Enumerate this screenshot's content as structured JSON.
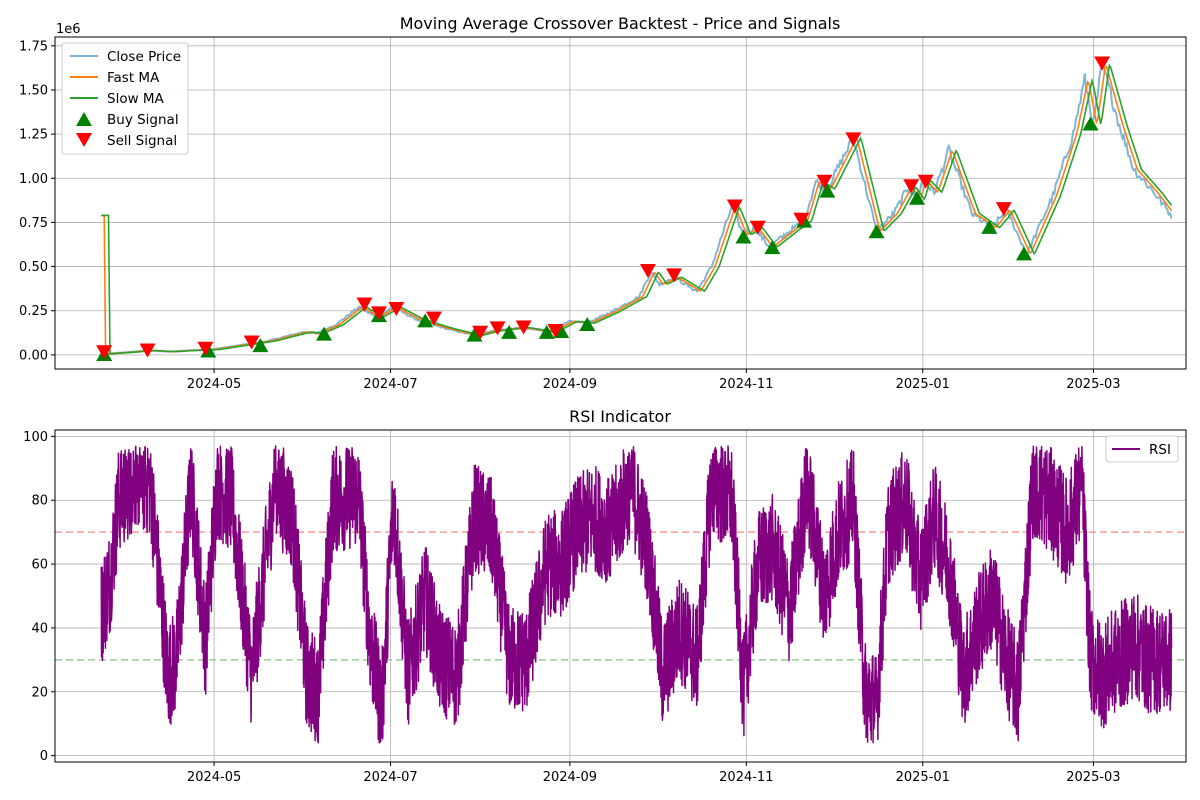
{
  "chart_data": [
    {
      "type": "line",
      "title": "Moving Average Crossover Backtest - Price and Signals",
      "offset_label": "1e6",
      "xlabel": "",
      "ylabel": "",
      "xlim": [
        "2024-03-07",
        "2025-04-02"
      ],
      "ylim": [
        -80000,
        1800000
      ],
      "y_ticks": [
        0,
        250000,
        500000,
        750000,
        1000000,
        1250000,
        1500000,
        1750000
      ],
      "y_tick_labels": [
        "0.00",
        "0.25",
        "0.50",
        "0.75",
        "1.00",
        "1.25",
        "1.50",
        "1.75"
      ],
      "x_ticks": [
        "2024-05-01",
        "2024-07-01",
        "2024-09-01",
        "2024-11-01",
        "2025-01-01",
        "2025-03-01"
      ],
      "x_tick_labels": [
        "2024-05",
        "2024-07",
        "2024-09",
        "2024-11",
        "2025-01",
        "2025-03"
      ],
      "grid": true,
      "legend_position": "upper-left",
      "series": [
        {
          "name": "Close Price",
          "color": "#7fb5d7"
        },
        {
          "name": "Fast MA",
          "color": "#ff7f0e"
        },
        {
          "name": "Slow MA",
          "color": "#2ca02c"
        }
      ],
      "price_points": [
        [
          "2024-03-23",
          5000
        ],
        [
          "2024-04-01",
          15000
        ],
        [
          "2024-04-08",
          25000
        ],
        [
          "2024-04-15",
          18000
        ],
        [
          "2024-04-22",
          25000
        ],
        [
          "2024-04-30",
          30000
        ],
        [
          "2024-05-10",
          55000
        ],
        [
          "2024-05-20",
          80000
        ],
        [
          "2024-06-01",
          130000
        ],
        [
          "2024-06-05",
          120000
        ],
        [
          "2024-06-12",
          170000
        ],
        [
          "2024-06-20",
          270000
        ],
        [
          "2024-06-26",
          215000
        ],
        [
          "2024-07-02",
          270000
        ],
        [
          "2024-07-10",
          200000
        ],
        [
          "2024-07-20",
          150000
        ],
        [
          "2024-07-30",
          110000
        ],
        [
          "2024-08-05",
          135000
        ],
        [
          "2024-08-15",
          155000
        ],
        [
          "2024-08-25",
          130000
        ],
        [
          "2024-09-01",
          190000
        ],
        [
          "2024-09-07",
          180000
        ],
        [
          "2024-09-15",
          240000
        ],
        [
          "2024-09-25",
          330000
        ],
        [
          "2024-09-29",
          470000
        ],
        [
          "2024-10-02",
          400000
        ],
        [
          "2024-10-07",
          440000
        ],
        [
          "2024-10-15",
          360000
        ],
        [
          "2024-10-20",
          500000
        ],
        [
          "2024-10-27",
          840000
        ],
        [
          "2024-10-31",
          680000
        ],
        [
          "2024-11-04",
          720000
        ],
        [
          "2024-11-09",
          610000
        ],
        [
          "2024-11-16",
          700000
        ],
        [
          "2024-11-21",
          760000
        ],
        [
          "2024-11-25",
          980000
        ],
        [
          "2024-11-29",
          940000
        ],
        [
          "2024-12-08",
          1230000
        ],
        [
          "2024-12-16",
          700000
        ],
        [
          "2024-12-22",
          800000
        ],
        [
          "2024-12-27",
          950000
        ],
        [
          "2024-12-30",
          880000
        ],
        [
          "2025-01-01",
          990000
        ],
        [
          "2025-01-05",
          920000
        ],
        [
          "2025-01-10",
          1160000
        ],
        [
          "2025-01-18",
          800000
        ],
        [
          "2025-01-25",
          720000
        ],
        [
          "2025-01-30",
          820000
        ],
        [
          "2025-02-06",
          570000
        ],
        [
          "2025-02-15",
          900000
        ],
        [
          "2025-02-22",
          1250000
        ],
        [
          "2025-02-26",
          1560000
        ],
        [
          "2025-03-01",
          1300000
        ],
        [
          "2025-03-04",
          1650000
        ],
        [
          "2025-03-10",
          1300000
        ],
        [
          "2025-03-15",
          1050000
        ],
        [
          "2025-03-22",
          920000
        ],
        [
          "2025-03-28",
          790000
        ]
      ],
      "buy_signals": [
        [
          "2024-03-24",
          5000
        ],
        [
          "2024-04-29",
          25000
        ],
        [
          "2024-05-17",
          55000
        ],
        [
          "2024-06-08",
          120000
        ],
        [
          "2024-06-27",
          225000
        ],
        [
          "2024-07-13",
          195000
        ],
        [
          "2024-07-30",
          115000
        ],
        [
          "2024-08-11",
          130000
        ],
        [
          "2024-08-24",
          130000
        ],
        [
          "2024-08-29",
          135000
        ],
        [
          "2024-09-07",
          175000
        ],
        [
          "2024-10-31",
          670000
        ],
        [
          "2024-11-10",
          610000
        ],
        [
          "2024-11-21",
          760000
        ],
        [
          "2024-11-29",
          930000
        ],
        [
          "2024-12-16",
          700000
        ],
        [
          "2024-12-30",
          890000
        ],
        [
          "2025-01-24",
          725000
        ],
        [
          "2025-02-05",
          575000
        ],
        [
          "2025-02-28",
          1310000
        ]
      ],
      "sell_signals": [
        [
          "2024-03-24",
          15000
        ],
        [
          "2024-04-08",
          25000
        ],
        [
          "2024-04-28",
          35000
        ],
        [
          "2024-05-14",
          70000
        ],
        [
          "2024-06-22",
          285000
        ],
        [
          "2024-06-27",
          235000
        ],
        [
          "2024-07-03",
          260000
        ],
        [
          "2024-07-16",
          205000
        ],
        [
          "2024-08-01",
          125000
        ],
        [
          "2024-08-07",
          150000
        ],
        [
          "2024-08-16",
          155000
        ],
        [
          "2024-08-27",
          135000
        ],
        [
          "2024-09-28",
          475000
        ],
        [
          "2024-10-07",
          450000
        ],
        [
          "2024-10-28",
          840000
        ],
        [
          "2024-11-05",
          720000
        ],
        [
          "2024-11-20",
          765000
        ],
        [
          "2024-11-28",
          980000
        ],
        [
          "2024-12-08",
          1220000
        ],
        [
          "2024-12-28",
          955000
        ],
        [
          "2025-01-02",
          980000
        ],
        [
          "2025-01-29",
          825000
        ],
        [
          "2025-03-04",
          1650000
        ]
      ],
      "legend": {
        "close": "Close Price",
        "fast": "Fast MA",
        "slow": "Slow MA",
        "buy": "Buy Signal",
        "sell": "Sell Signal"
      }
    },
    {
      "type": "line",
      "title": "RSI Indicator",
      "xlabel": "",
      "ylabel": "",
      "xlim": [
        "2024-03-07",
        "2025-04-02"
      ],
      "ylim": [
        -2,
        102
      ],
      "y_ticks": [
        0,
        20,
        40,
        60,
        80,
        100
      ],
      "y_tick_labels": [
        "0",
        "20",
        "40",
        "60",
        "80",
        "100"
      ],
      "x_ticks": [
        "2024-05-01",
        "2024-07-01",
        "2024-09-01",
        "2024-11-01",
        "2025-01-01",
        "2025-03-01"
      ],
      "x_tick_labels": [
        "2024-05",
        "2024-07",
        "2024-09",
        "2024-11",
        "2025-01",
        "2025-03"
      ],
      "grid": true,
      "legend_position": "upper-right",
      "reference_lines": [
        {
          "value": 70,
          "color": "#ff9999"
        },
        {
          "value": 30,
          "color": "#99cc99"
        }
      ],
      "series": [
        {
          "name": "RSI",
          "color": "#800080"
        }
      ],
      "rsi_segments": [
        [
          "2024-03-23",
          45
        ],
        [
          "2024-03-26",
          55
        ],
        [
          "2024-03-29",
          80
        ],
        [
          "2024-04-04",
          88
        ],
        [
          "2024-04-09",
          85
        ],
        [
          "2024-04-15",
          25
        ],
        [
          "2024-04-18",
          30
        ],
        [
          "2024-04-23",
          85
        ],
        [
          "2024-04-28",
          35
        ],
        [
          "2024-05-02",
          85
        ],
        [
          "2024-05-07",
          80
        ],
        [
          "2024-05-14",
          25
        ],
        [
          "2024-05-22",
          85
        ],
        [
          "2024-05-28",
          75
        ],
        [
          "2024-06-02",
          25
        ],
        [
          "2024-06-06",
          20
        ],
        [
          "2024-06-11",
          80
        ],
        [
          "2024-06-20",
          82
        ],
        [
          "2024-06-24",
          35
        ],
        [
          "2024-06-28",
          15
        ],
        [
          "2024-07-02",
          80
        ],
        [
          "2024-07-07",
          25
        ],
        [
          "2024-07-13",
          50
        ],
        [
          "2024-07-18",
          30
        ],
        [
          "2024-07-24",
          25
        ],
        [
          "2024-07-30",
          75
        ],
        [
          "2024-08-05",
          70
        ],
        [
          "2024-08-11",
          30
        ],
        [
          "2024-08-17",
          30
        ],
        [
          "2024-08-24",
          60
        ],
        [
          "2024-08-29",
          60
        ],
        [
          "2024-09-03",
          70
        ],
        [
          "2024-09-09",
          75
        ],
        [
          "2024-09-15",
          70
        ],
        [
          "2024-09-22",
          85
        ],
        [
          "2024-09-28",
          65
        ],
        [
          "2024-10-03",
          25
        ],
        [
          "2024-10-09",
          40
        ],
        [
          "2024-10-15",
          30
        ],
        [
          "2024-10-20",
          85
        ],
        [
          "2024-10-27",
          80
        ],
        [
          "2024-10-31",
          20
        ],
        [
          "2024-11-05",
          60
        ],
        [
          "2024-11-10",
          65
        ],
        [
          "2024-11-16",
          45
        ],
        [
          "2024-11-22",
          85
        ],
        [
          "2024-11-28",
          50
        ],
        [
          "2024-12-03",
          70
        ],
        [
          "2024-12-08",
          80
        ],
        [
          "2024-12-12",
          20
        ],
        [
          "2024-12-16",
          15
        ],
        [
          "2024-12-20",
          70
        ],
        [
          "2024-12-26",
          80
        ],
        [
          "2024-12-31",
          55
        ],
        [
          "2025-01-05",
          75
        ],
        [
          "2025-01-10",
          60
        ],
        [
          "2025-01-15",
          25
        ],
        [
          "2025-01-20",
          40
        ],
        [
          "2025-01-25",
          50
        ],
        [
          "2025-01-30",
          30
        ],
        [
          "2025-02-03",
          20
        ],
        [
          "2025-02-08",
          85
        ],
        [
          "2025-02-14",
          80
        ],
        [
          "2025-02-20",
          70
        ],
        [
          "2025-02-25",
          85
        ],
        [
          "2025-02-28",
          30
        ],
        [
          "2025-03-04",
          25
        ],
        [
          "2025-03-09",
          30
        ],
        [
          "2025-03-15",
          35
        ],
        [
          "2025-03-20",
          30
        ],
        [
          "2025-03-28",
          30
        ]
      ]
    }
  ]
}
